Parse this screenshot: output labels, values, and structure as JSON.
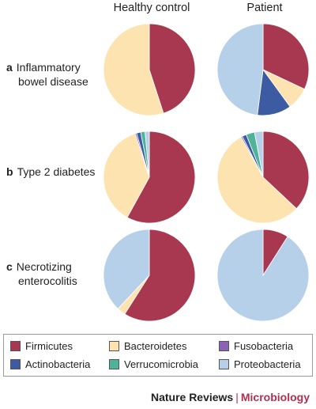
{
  "columns": [
    "Healthy control",
    "Patient"
  ],
  "rows": [
    {
      "letter": "a",
      "line1": "Inflammatory",
      "line2": "bowel disease"
    },
    {
      "letter": "b",
      "line1": "Type 2 diabetes",
      "line2": ""
    },
    {
      "letter": "c",
      "line1": "Necrotizing",
      "line2": "enterocolitis"
    }
  ],
  "legend": [
    {
      "name": "Firmicutes",
      "color": "#a8384f"
    },
    {
      "name": "Bacteroidetes",
      "color": "#fde3b0"
    },
    {
      "name": "Fusobacteria",
      "color": "#8b62b5"
    },
    {
      "name": "Actinobacteria",
      "color": "#3d5ba3"
    },
    {
      "name": "Verrucomicrobia",
      "color": "#4fb39a"
    },
    {
      "name": "Proteobacteria",
      "color": "#b6d0ea"
    }
  ],
  "footer": {
    "journal": "Nature Reviews",
    "separator": "|",
    "subject": "Microbiology"
  },
  "chart_data": {
    "type": "pie",
    "categories": [
      "Firmicutes",
      "Bacteroidetes",
      "Fusobacteria",
      "Actinobacteria",
      "Verrucomicrobia",
      "Proteobacteria"
    ],
    "pies": [
      {
        "row": "Inflammatory bowel disease",
        "column": "Healthy control",
        "values": {
          "Firmicutes": 45,
          "Bacteroidetes": 55,
          "Fusobacteria": 0,
          "Actinobacteria": 0,
          "Verrucomicrobia": 0,
          "Proteobacteria": 0
        }
      },
      {
        "row": "Inflammatory bowel disease",
        "column": "Patient",
        "values": {
          "Firmicutes": 32,
          "Bacteroidetes": 8,
          "Fusobacteria": 0,
          "Actinobacteria": 12,
          "Verrucomicrobia": 0,
          "Proteobacteria": 48
        }
      },
      {
        "row": "Type 2 diabetes",
        "column": "Healthy control",
        "values": {
          "Firmicutes": 58,
          "Bacteroidetes": 37,
          "Fusobacteria": 0.5,
          "Actinobacteria": 1.5,
          "Verrucomicrobia": 1.5,
          "Proteobacteria": 1.5
        }
      },
      {
        "row": "Type 2 diabetes",
        "column": "Patient",
        "values": {
          "Firmicutes": 37,
          "Bacteroidetes": 55,
          "Fusobacteria": 0.5,
          "Actinobacteria": 1.5,
          "Verrucomicrobia": 3,
          "Proteobacteria": 3
        }
      },
      {
        "row": "Necrotizing enterocolitis",
        "column": "Healthy control",
        "values": {
          "Firmicutes": 59,
          "Bacteroidetes": 3,
          "Fusobacteria": 0,
          "Actinobacteria": 0,
          "Verrucomicrobia": 0,
          "Proteobacteria": 38
        }
      },
      {
        "row": "Necrotizing enterocolitis",
        "column": "Patient",
        "values": {
          "Firmicutes": 9,
          "Bacteroidetes": 0,
          "Fusobacteria": 0,
          "Actinobacteria": 0,
          "Verrucomicrobia": 0,
          "Proteobacteria": 91
        }
      }
    ]
  }
}
